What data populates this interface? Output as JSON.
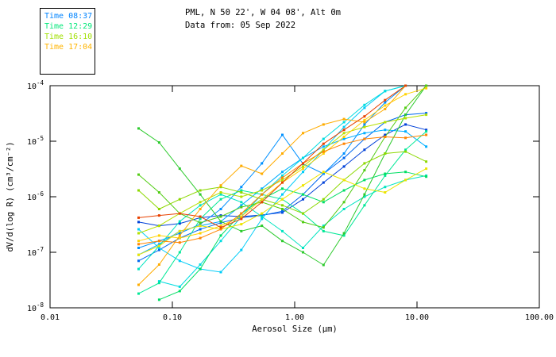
{
  "header": {
    "title": "PML, N 50 22', W 04 08', Alt 0m",
    "subtitle": "Data from: 05 Sep 2022"
  },
  "legend": {
    "items": [
      {
        "label": "Time 08:37",
        "color": "#0084FF"
      },
      {
        "label": "Time 12:29",
        "color": "#00E878"
      },
      {
        "label": "Time 16:10",
        "color": "#A0E000"
      },
      {
        "label": "Time 17:04",
        "color": "#FFB400"
      }
    ]
  },
  "chart_data": {
    "type": "line",
    "title": "PML, N 50 22', W 04 08', Alt 0m",
    "subtitle": "Data from: 05 Sep 2022",
    "xlabel": "Aerosol Size (μm)",
    "ylabel": "dV/d(log R) (cm³/cm⁻²)",
    "x_scale": "log",
    "y_scale": "log",
    "xlim": [
      0.01,
      100.0
    ],
    "ylim": [
      1e-08,
      0.0001
    ],
    "x_ticks": [
      "0.01",
      "0.10",
      "1.00",
      "10.00",
      "100.00"
    ],
    "y_tick_exponents": [
      -4,
      -5,
      -6,
      -7,
      -8
    ],
    "grid": false,
    "legend_position": "outside-top-left",
    "marker": "square",
    "x": [
      0.053,
      0.078,
      0.115,
      0.169,
      0.249,
      0.366,
      0.539,
      0.793,
      1.17,
      1.72,
      2.53,
      3.72,
      5.48,
      8.06,
      11.9
    ],
    "series": [
      {
        "name": "line-01",
        "color": "#0040D8",
        "values": [
          3.5e-07,
          3e-07,
          3.3e-07,
          4.2e-07,
          4.6e-07,
          4.4e-07,
          4.7e-07,
          5.2e-07,
          9e-07,
          1.8e-06,
          3.5e-06,
          7e-06,
          1.3e-05,
          2e-05,
          1.6e-05
        ]
      },
      {
        "name": "line-02",
        "color": "#0068F0",
        "values": [
          7e-08,
          1.1e-07,
          1.8e-07,
          2.6e-07,
          3.4e-07,
          4.2e-07,
          4.6e-07,
          5.5e-07,
          1.1e-06,
          2.6e-06,
          5e-06,
          1.1e-05,
          2.2e-05,
          3e-05,
          3.2e-05
        ]
      },
      {
        "name": "line-03",
        "color": "#0090FF",
        "values": [
          1.2e-07,
          1.6e-07,
          2.2e-07,
          3.2e-07,
          6e-07,
          1.5e-06,
          4e-06,
          1.3e-05,
          3.9e-06,
          2.6e-06,
          6e-06,
          2e-05,
          5e-05,
          0.0001,
          null
        ]
      },
      {
        "name": "line-04",
        "color": "#00AEFF",
        "values": [
          9e-08,
          1.4e-07,
          2.4e-07,
          3e-07,
          3.6e-07,
          7e-07,
          1.4e-06,
          2.8e-06,
          5e-06,
          8e-06,
          1.1e-05,
          1.4e-05,
          1.6e-05,
          1.5e-05,
          8e-06
        ]
      },
      {
        "name": "line-05",
        "color": "#00CCF8",
        "values": [
          2.6e-07,
          1.2e-07,
          7e-08,
          5e-08,
          4.4e-08,
          1.1e-07,
          4e-07,
          1.1e-06,
          2.8e-06,
          7e-06,
          1.8e-05,
          4e-05,
          8e-05,
          0.0001,
          null
        ]
      },
      {
        "name": "line-06",
        "color": "#00DCE0",
        "values": [
          null,
          3e-08,
          2.4e-08,
          6e-08,
          1.6e-07,
          4.4e-07,
          1.1e-06,
          2.4e-06,
          5e-06,
          1.1e-05,
          2.2e-05,
          4.5e-05,
          8e-05,
          0.0001,
          null
        ]
      },
      {
        "name": "line-07",
        "color": "#00E4C0",
        "values": [
          5e-08,
          1.3e-07,
          3.6e-07,
          7e-07,
          1.1e-06,
          8e-07,
          4.4e-07,
          2.4e-07,
          1.2e-07,
          3e-07,
          6e-07,
          1e-06,
          1.5e-06,
          2e-06,
          2.4e-06
        ]
      },
      {
        "name": "line-08",
        "color": "#00E896",
        "values": [
          1.8e-08,
          2.8e-08,
          1e-07,
          4e-07,
          9e-07,
          1.3e-06,
          1.1e-06,
          9e-07,
          5e-07,
          2.4e-07,
          2e-07,
          7e-07,
          2.4e-06,
          7e-06,
          1.5e-05
        ]
      },
      {
        "name": "line-09",
        "color": "#00DE64",
        "values": [
          null,
          1.4e-08,
          2e-08,
          5e-08,
          2e-07,
          5e-07,
          9e-07,
          1.4e-06,
          1.1e-06,
          8e-07,
          1.3e-06,
          2e-06,
          2.6e-06,
          2.8e-06,
          2.3e-06
        ]
      },
      {
        "name": "line-10",
        "color": "#2CCA2C",
        "values": [
          1.7e-05,
          9.5e-06,
          3.2e-06,
          1.1e-06,
          3.6e-07,
          2.4e-07,
          3e-07,
          1.6e-07,
          1e-07,
          5.9e-08,
          2.2e-07,
          1.1e-06,
          6e-06,
          3e-05,
          0.0001
        ]
      },
      {
        "name": "line-11",
        "color": "#52CC14",
        "values": [
          2.5e-06,
          1.2e-06,
          5e-07,
          3.4e-07,
          4.4e-07,
          6.5e-07,
          8e-07,
          6e-07,
          3.5e-07,
          2.8e-07,
          8e-07,
          3e-06,
          1.2e-05,
          4e-05,
          0.0001
        ]
      },
      {
        "name": "line-12",
        "color": "#8CD800",
        "values": [
          1.3e-06,
          6e-07,
          9e-07,
          1.3e-06,
          1.5e-06,
          1.2e-06,
          9e-07,
          7e-07,
          5e-07,
          9e-07,
          2e-06,
          4e-06,
          6e-06,
          6.5e-06,
          4.3e-06
        ]
      },
      {
        "name": "line-13",
        "color": "#B4E000",
        "values": [
          2.2e-07,
          3e-07,
          5e-07,
          8e-07,
          1.2e-06,
          1e-06,
          1.3e-06,
          2e-06,
          3.5e-06,
          7e-06,
          1.4e-05,
          1.8e-05,
          2.2e-05,
          2.6e-05,
          3e-05
        ]
      },
      {
        "name": "line-14",
        "color": "#ECE400",
        "values": [
          9e-08,
          1.3e-07,
          2.4e-07,
          3e-07,
          2.6e-07,
          3.2e-07,
          5e-07,
          9e-07,
          1.6e-06,
          2.8e-06,
          2e-06,
          1.4e-06,
          1.2e-06,
          2e-06,
          3.2e-06
        ]
      },
      {
        "name": "line-15",
        "color": "#FFD200",
        "values": [
          1.6e-07,
          2e-07,
          1.8e-07,
          2.2e-07,
          3e-07,
          4.4e-07,
          9e-07,
          1.8e-06,
          3.2e-06,
          6e-06,
          1.2e-05,
          2.4e-05,
          4.4e-05,
          7e-05,
          9e-05
        ]
      },
      {
        "name": "line-16",
        "color": "#FFAC00",
        "values": [
          2.6e-08,
          6e-08,
          2e-07,
          6e-07,
          1.6e-06,
          3.6e-06,
          2.6e-06,
          6e-06,
          1.4e-05,
          2e-05,
          2.5e-05,
          2.2e-05,
          3.8e-05,
          0.0001,
          null
        ]
      },
      {
        "name": "line-17",
        "color": "#FF8400",
        "values": [
          1.4e-07,
          1.6e-07,
          1.5e-07,
          1.8e-07,
          2.6e-07,
          5e-07,
          1.1e-06,
          2.2e-06,
          4e-06,
          6.5e-06,
          9e-06,
          1.1e-05,
          1.2e-05,
          1.15e-05,
          1.3e-05
        ]
      },
      {
        "name": "line-18",
        "color": "#E84200",
        "values": [
          4.2e-07,
          4.6e-07,
          5e-07,
          4.4e-07,
          2.8e-07,
          4e-07,
          8e-07,
          1.8e-06,
          4e-06,
          9e-06,
          1.6e-05,
          2.8e-05,
          5.5e-05,
          0.0001,
          null
        ]
      }
    ]
  }
}
